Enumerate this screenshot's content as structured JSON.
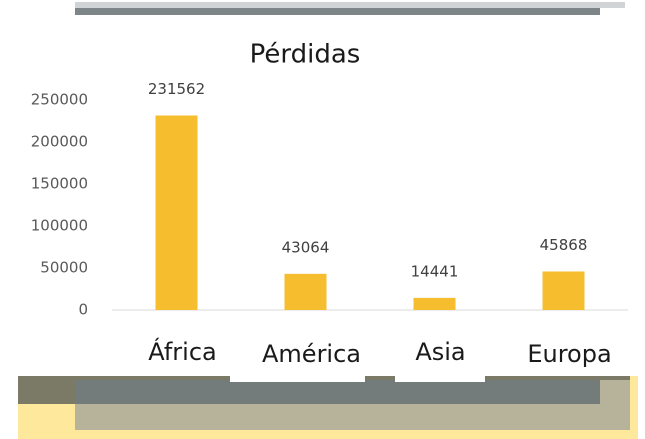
{
  "chart_data": {
    "type": "bar",
    "title": "Pérdidas",
    "categories": [
      "África",
      "América",
      "Asia",
      "Europa"
    ],
    "values": [
      231562,
      43064,
      14441,
      45868
    ],
    "color": "#f6be2f",
    "ylim": [
      0,
      250000
    ],
    "yticks": [
      0,
      50000,
      100000,
      150000,
      200000,
      250000
    ],
    "grid": false
  }
}
